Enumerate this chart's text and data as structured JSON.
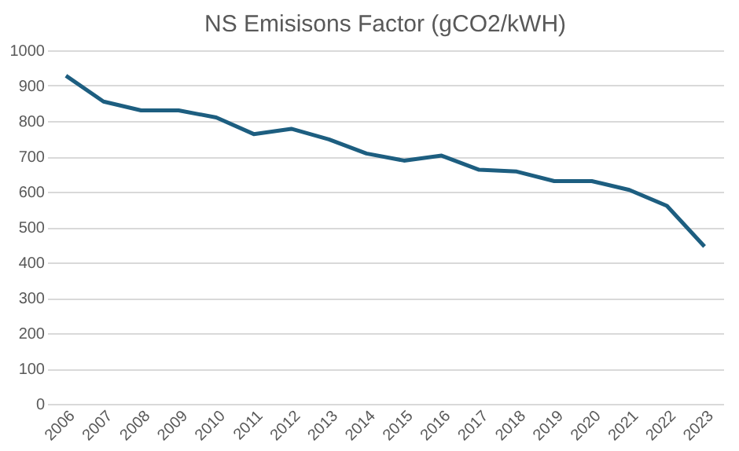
{
  "chart_data": {
    "type": "line",
    "title": "NS Emisisons Factor (gCO2/kWH)",
    "categories": [
      "2006",
      "2007",
      "2008",
      "2009",
      "2010",
      "2011",
      "2012",
      "2013",
      "2014",
      "2015",
      "2016",
      "2017",
      "2018",
      "2019",
      "2020",
      "2021",
      "2022",
      "2023"
    ],
    "series": [
      {
        "color": "#1d5e80",
        "values": [
          928,
          855,
          830,
          830,
          810,
          763,
          778,
          748,
          708,
          688,
          702,
          662,
          657,
          630,
          630,
          605,
          560,
          445
        ]
      }
    ],
    "ylim": [
      0,
      1000
    ],
    "yticks": [
      0,
      100,
      200,
      300,
      400,
      500,
      600,
      700,
      800,
      900,
      1000
    ],
    "grid": "y",
    "legend": false,
    "marker": "none",
    "line_style": "solid"
  }
}
